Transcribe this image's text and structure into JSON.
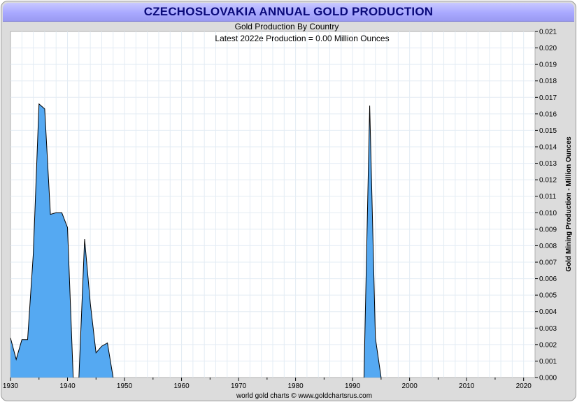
{
  "header": {
    "title": "CZECHOSLOVAKIA ANNUAL GOLD PRODUCTION"
  },
  "colors": {
    "fill": "#55a9f2",
    "line": "#000000",
    "grid": "#e3ecf4",
    "title_bg": "#a9a9ff",
    "title_text": "#0a0a7a"
  },
  "chart_data": {
    "type": "area",
    "title": "CZECHOSLOVAKIA ANNUAL GOLD PRODUCTION",
    "subtitle": "Gold Production By Country",
    "annotation": "Latest 2022e Production = 0.00 Million Ounces",
    "xlabel": "",
    "ylabel": "Gold Mining Production - Million Ounces",
    "footer": "world gold charts © www.goldchartsrus.com",
    "xlim": [
      1930,
      2022
    ],
    "ylim": [
      0,
      0.021
    ],
    "x_ticks": [
      1930,
      1940,
      1950,
      1960,
      1970,
      1980,
      1990,
      2000,
      2010,
      2020
    ],
    "x_tick_labels": [
      "1930",
      "1940",
      "1950",
      "1960",
      "1970",
      "1980",
      "1990",
      "2000",
      "2010",
      "2020"
    ],
    "y_ticks": [
      0,
      0.001,
      0.002,
      0.003,
      0.004,
      0.005,
      0.006,
      0.007,
      0.008,
      0.009,
      0.01,
      0.011,
      0.012,
      0.013,
      0.014,
      0.015,
      0.016,
      0.017,
      0.018,
      0.019,
      0.02,
      0.021
    ],
    "y_tick_labels": [
      "0.000",
      "0.001",
      "0.002",
      "0.003",
      "0.004",
      "0.005",
      "0.006",
      "0.007",
      "0.008",
      "0.009",
      "0.010",
      "0.011",
      "0.012",
      "0.013",
      "0.014",
      "0.015",
      "0.016",
      "0.017",
      "0.018",
      "0.019",
      "0.020",
      "0.021"
    ],
    "grid": true,
    "series": [
      {
        "name": "Czechoslovakia",
        "x": [
          1930,
          1931,
          1932,
          1933,
          1934,
          1935,
          1936,
          1937,
          1938,
          1939,
          1940,
          1941,
          1942,
          1943,
          1944,
          1945,
          1946,
          1947,
          1948,
          1949,
          1950,
          1991,
          1992,
          1993,
          1994,
          1995
        ],
        "values": [
          0.0024,
          0.0011,
          0.0023,
          0.0023,
          0.0075,
          0.0166,
          0.0163,
          0.0099,
          0.01,
          0.01,
          0.0091,
          0.0,
          0.0,
          0.0084,
          0.0045,
          0.0015,
          0.0019,
          0.0021,
          0.0,
          0.0,
          0.0,
          0.0,
          0.0,
          0.0165,
          0.0024,
          0.0
        ]
      }
    ]
  }
}
